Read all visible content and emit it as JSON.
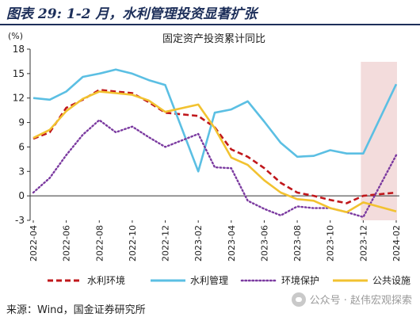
{
  "header": {
    "title": "图表 29: 1-2 月，水利管理投资显著扩张"
  },
  "source": "来源：Wind，国金证券研究所",
  "watermark": "公众号 · 赵伟宏观探索",
  "chart_data": {
    "type": "line",
    "title": "固定资产投资累计同比",
    "ylabel": "(%)",
    "ylim": [
      -3,
      18
    ],
    "yticks": [
      -3,
      0,
      3,
      6,
      9,
      12,
      15,
      18
    ],
    "x": [
      "2022-04",
      "2022-05",
      "2022-06",
      "2022-07",
      "2022-08",
      "2022-09",
      "2022-10",
      "2022-11",
      "2022-12",
      "2023-01",
      "2023-02",
      "2023-03",
      "2023-04",
      "2023-05",
      "2023-06",
      "2023-07",
      "2023-08",
      "2023-09",
      "2023-10",
      "2023-11",
      "2023-12",
      "2024-01",
      "2024-02"
    ],
    "xtick_labels": [
      "2022-04",
      "2022-06",
      "2022-08",
      "2022-10",
      "2022-12",
      "2023-02",
      "2023-04",
      "2023-06",
      "2023-08",
      "2023-10",
      "2023-12",
      "2024-02"
    ],
    "highlight": {
      "from": "2023-12",
      "to": "2024-02",
      "color": "#f3dcdc"
    },
    "grid": false,
    "legend_position": "bottom",
    "series": [
      {
        "name": "水利环境",
        "color": "#c0171b",
        "style": "dashed",
        "values": [
          7.0,
          7.8,
          10.8,
          11.8,
          13.0,
          12.8,
          12.6,
          11.5,
          10.2,
          null,
          9.8,
          8.4,
          5.7,
          4.8,
          3.4,
          1.6,
          0.4,
          0.0,
          -0.5,
          -0.9,
          0.0,
          null,
          0.4
        ]
      },
      {
        "name": "水利管理",
        "color": "#5bbfe3",
        "style": "solid",
        "values": [
          12.0,
          11.8,
          12.8,
          14.6,
          15.0,
          15.5,
          15.0,
          14.2,
          13.6,
          null,
          3.0,
          10.2,
          10.6,
          11.6,
          9.1,
          6.5,
          4.8,
          4.9,
          5.6,
          5.2,
          5.2,
          null,
          13.7
        ]
      },
      {
        "name": "环境保护",
        "color": "#7b3aa0",
        "style": "dotted",
        "values": [
          0.4,
          2.2,
          5.0,
          7.5,
          9.3,
          7.8,
          8.5,
          7.2,
          6.0,
          null,
          7.6,
          3.5,
          3.4,
          -0.6,
          -1.6,
          -2.4,
          -1.3,
          -1.5,
          -1.5,
          -2.0,
          -2.6,
          null,
          5.0
        ]
      },
      {
        "name": "公共设施",
        "color": "#f2c230",
        "style": "solid",
        "values": [
          7.1,
          8.1,
          10.4,
          11.9,
          12.8,
          12.6,
          12.4,
          11.7,
          10.3,
          null,
          11.2,
          8.3,
          4.7,
          3.8,
          1.9,
          0.4,
          -0.4,
          -0.6,
          -1.5,
          -2.0,
          -0.8,
          null,
          -1.9
        ]
      }
    ]
  }
}
